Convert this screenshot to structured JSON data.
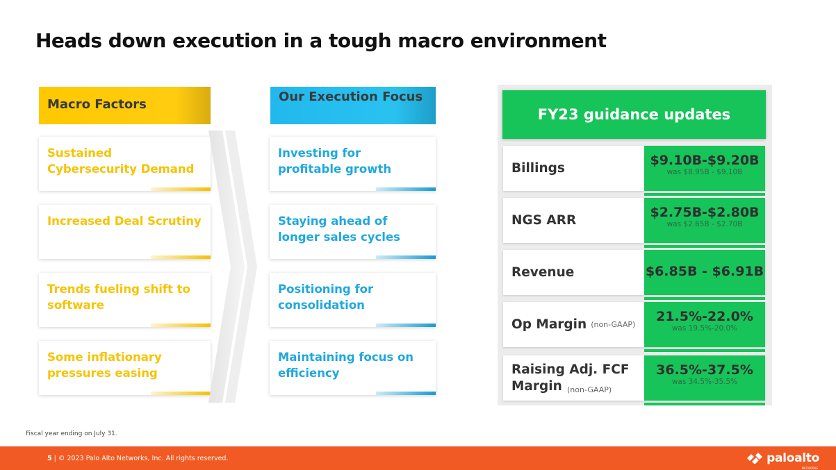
{
  "title": "Heads down execution in a tough macro environment",
  "macro": {
    "header": "Macro Factors",
    "items": [
      "Sustained Cybersecurity Demand",
      "Increased Deal Scrutiny",
      "Trends fueling shift to software",
      "Some inflationary pressures easing"
    ]
  },
  "execution": {
    "header": "Our Execution Focus",
    "items": [
      "Investing for profitable growth",
      "Staying ahead of longer sales cycles",
      "Positioning for consolidation",
      "Maintaining focus on efficiency"
    ]
  },
  "guidance": {
    "header": "FY23 guidance updates",
    "rows": [
      {
        "label": "Billings",
        "sub": "",
        "value": "$9.10B-$9.20B",
        "was": "was $8.95B - $9.10B"
      },
      {
        "label": "NGS ARR",
        "sub": "",
        "value": "$2.75B-$2.80B",
        "was": "was $2.65B - $2.70B"
      },
      {
        "label": "Revenue",
        "sub": "",
        "value": "$6.85B - $6.91B",
        "was": ""
      },
      {
        "label": "Op Margin",
        "sub": "(non-GAAP)",
        "value": "21.5%-22.0%",
        "was": "was 19.5%-20.0%"
      },
      {
        "label": "Raising Adj. FCF Margin",
        "sub": "(non-GAAP)",
        "value": "36.5%-37.5%",
        "was": "was 34.5%-35.5%"
      }
    ]
  },
  "footnote": "Fiscal year ending on July 31.",
  "footer": {
    "page": "5",
    "copyright": "© 2023 Palo Alto Networks, Inc. All rights reserved.",
    "logo": "paloalto",
    "logo_small": "NETWORKS"
  },
  "colors": {
    "macro_accent": "#ffc800",
    "exec_accent": "#22b8ee",
    "guidance_green": "#17c45a",
    "footer_orange": "#f15a22"
  }
}
